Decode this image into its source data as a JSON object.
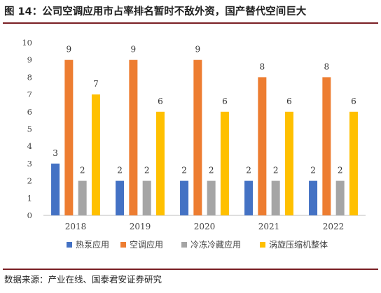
{
  "figure": {
    "title": "图 14：公司空调应用市占率排名暂时不敌外资，国产替代空间巨大",
    "source": "数据来源：产业在线、国泰君安证券研究"
  },
  "chart_data": {
    "type": "bar",
    "title": "",
    "xlabel": "",
    "ylabel": "",
    "ylim": [
      0,
      10
    ],
    "yticks": [
      "0",
      "1",
      "2",
      "3",
      "4",
      "5",
      "6",
      "7",
      "8",
      "9",
      "10"
    ],
    "categories": [
      "2018",
      "2019",
      "2020",
      "2021",
      "2022"
    ],
    "series": [
      {
        "name": "热泵应用",
        "values": [
          3,
          2,
          2,
          2,
          2
        ],
        "color": "#4472C4"
      },
      {
        "name": "空调应用",
        "values": [
          9,
          9,
          9,
          8,
          8
        ],
        "color": "#ED7D31"
      },
      {
        "name": "冷冻冷藏应用",
        "values": [
          2,
          2,
          2,
          2,
          2
        ],
        "color": "#A5A5A5"
      },
      {
        "name": "涡旋压缩机整体",
        "values": [
          7,
          6,
          6,
          6,
          6
        ],
        "color": "#FFC000"
      }
    ],
    "data_labels": true,
    "grid": false,
    "legend_position": "bottom"
  }
}
